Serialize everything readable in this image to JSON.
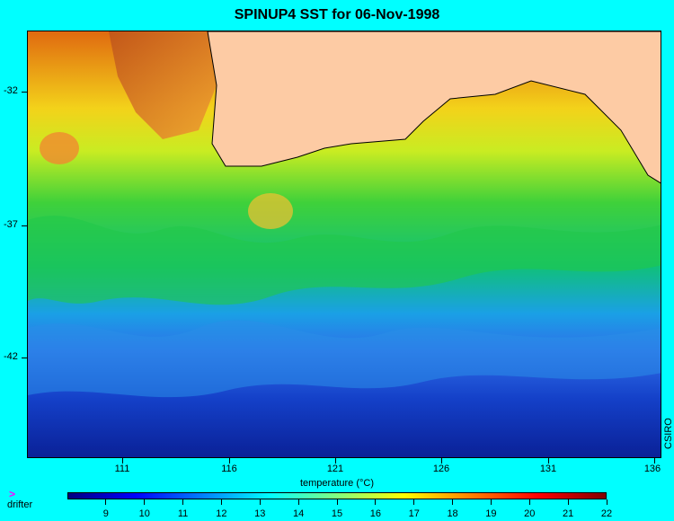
{
  "title": "SPINUP4 SST for 06-Nov-1998",
  "map": {
    "lat_labels": [
      "-32",
      "-37",
      "-42"
    ],
    "lon_labels": [
      "111",
      "116",
      "121",
      "126",
      "131",
      "136"
    ],
    "credit": "CSIRO",
    "land_color": "#fdcba4",
    "ocean_colormap": "jet"
  },
  "colorbar": {
    "label": "temperature (°C)",
    "min": 8,
    "max": 22,
    "ticks": [
      "9",
      "10",
      "11",
      "12",
      "13",
      "14",
      "15",
      "16",
      "17",
      "18",
      "19",
      "20",
      "21",
      "22"
    ]
  },
  "legend": {
    "drifter_symbol": ">",
    "drifter_label": "drifter",
    "drifter_color": "#ff00ff"
  }
}
